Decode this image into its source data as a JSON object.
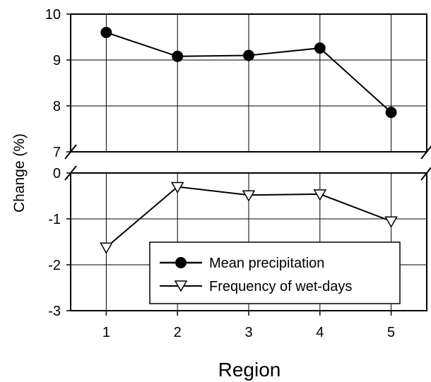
{
  "chart_data": {
    "type": "line",
    "xlabel": "Region",
    "ylabel": "Change (%)",
    "categories": [
      "1",
      "2",
      "3",
      "4",
      "5"
    ],
    "broken_y_axis": true,
    "panels": {
      "upper": {
        "ylim": [
          7,
          10
        ],
        "yticks": [
          "7",
          "8",
          "9",
          "10"
        ],
        "tick_values": [
          7,
          8,
          9,
          10
        ]
      },
      "lower": {
        "ylim": [
          -3,
          0
        ],
        "yticks": [
          "-3",
          "-2",
          "-1",
          "0"
        ],
        "tick_values": [
          -3,
          -2,
          -1,
          0
        ]
      }
    },
    "grid": true,
    "legend_position": "bottom-right",
    "series": [
      {
        "name": "Mean precipitation",
        "panel": "upper",
        "marker": "filled-circle",
        "values": [
          9.6,
          9.08,
          9.1,
          9.26,
          7.86
        ]
      },
      {
        "name": "Frequency of wet-days",
        "panel": "lower",
        "marker": "open-triangle-down",
        "values": [
          -1.62,
          -0.3,
          -0.48,
          -0.46,
          -1.05
        ]
      }
    ]
  }
}
